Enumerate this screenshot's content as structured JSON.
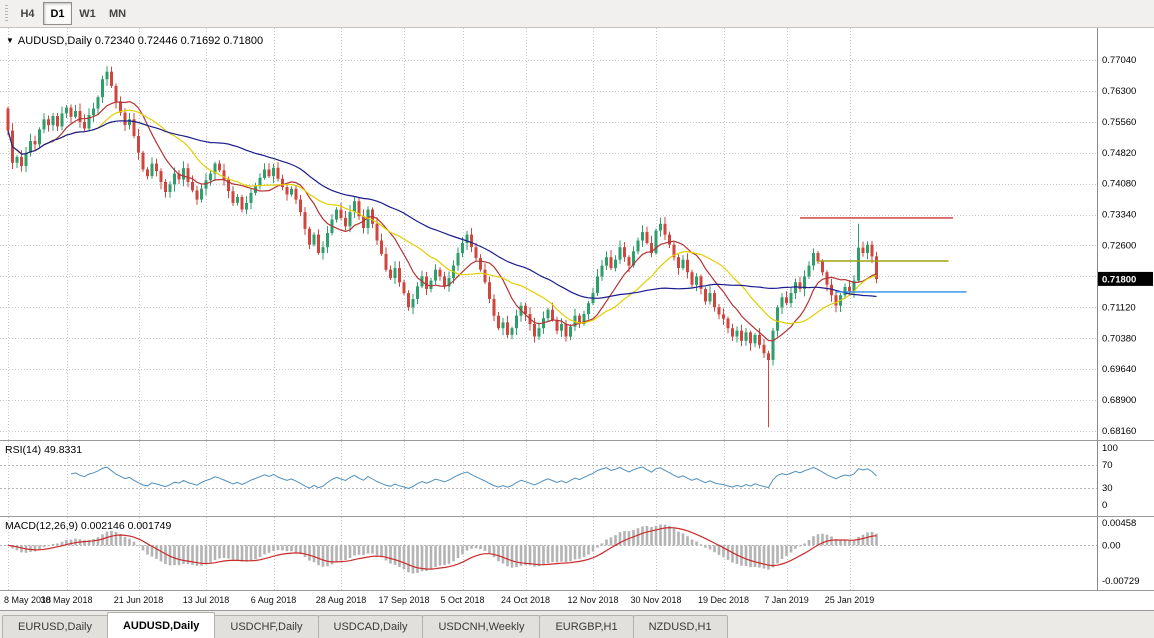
{
  "colors": {
    "grid": "#c8c8c8",
    "axis_text": "#000000",
    "pane_border": "#9a9a9a"
  },
  "toolbar": {
    "timeframes": [
      {
        "label": "H4",
        "active": false
      },
      {
        "label": "D1",
        "active": true
      },
      {
        "label": "W1",
        "active": false
      },
      {
        "label": "MN",
        "active": false
      }
    ]
  },
  "chart": {
    "title_arrow": "▼",
    "title": "AUDUSD,Daily 0.72340 0.72446 0.71692 0.71800"
  },
  "chart_data": {
    "type": "candlestick",
    "symbol": "AUDUSD",
    "timeframe": "Daily",
    "ohlc": {
      "open": "0.72340",
      "high": "0.72446",
      "low": "0.71692",
      "close": "0.71800"
    },
    "up_color": "#2e9e6b",
    "down_color": "#d0453e",
    "price_axis": {
      "max": 0.7704,
      "min": 0.6816,
      "labels": [
        "0.77040",
        "0.76300",
        "0.75560",
        "0.74820",
        "0.74080",
        "0.73340",
        "0.72600",
        "0.71860",
        "0.71120",
        "0.70380",
        "0.69640",
        "0.68900",
        "0.68160"
      ]
    },
    "date_axis": {
      "labels": [
        {
          "text": "8 May 2018",
          "index": 0
        },
        {
          "text": "30 May 2018",
          "index": 13
        },
        {
          "text": "21 Jun 2018",
          "index": 29
        },
        {
          "text": "13 Jul 2018",
          "index": 44
        },
        {
          "text": "6 Aug 2018",
          "index": 59
        },
        {
          "text": "28 Aug 2018",
          "index": 74
        },
        {
          "text": "17 Sep 2018",
          "index": 88
        },
        {
          "text": "5 Oct 2018",
          "index": 101
        },
        {
          "text": "24 Oct 2018",
          "index": 115
        },
        {
          "text": "12 Nov 2018",
          "index": 130
        },
        {
          "text": "30 Nov 2018",
          "index": 144
        },
        {
          "text": "19 Dec 2018",
          "index": 159
        },
        {
          "text": "7 Jan 2019",
          "index": 173
        },
        {
          "text": "25 Jan 2019",
          "index": 187
        }
      ]
    },
    "candles": {
      "first_open": 0.7588,
      "closes": [
        0.7535,
        0.7458,
        0.7472,
        0.745,
        0.7482,
        0.751,
        0.7502,
        0.7538,
        0.7562,
        0.7548,
        0.757,
        0.7545,
        0.7576,
        0.759,
        0.7568,
        0.7582,
        0.7556,
        0.754,
        0.7572,
        0.7588,
        0.7615,
        0.7658,
        0.7676,
        0.7642,
        0.7605,
        0.7578,
        0.7548,
        0.7562,
        0.7522,
        0.7482,
        0.7442,
        0.7426,
        0.7456,
        0.7438,
        0.7412,
        0.7388,
        0.7406,
        0.7432,
        0.7418,
        0.7445,
        0.7412,
        0.7392,
        0.737,
        0.7396,
        0.7416,
        0.7432,
        0.7456,
        0.744,
        0.7418,
        0.739,
        0.7362,
        0.7376,
        0.7346,
        0.7362,
        0.7386,
        0.7402,
        0.7422,
        0.7442,
        0.7426,
        0.7446,
        0.742,
        0.74,
        0.7382,
        0.7396,
        0.737,
        0.734,
        0.73,
        0.7262,
        0.7286,
        0.7242,
        0.7256,
        0.729,
        0.7322,
        0.7346,
        0.7326,
        0.7306,
        0.734,
        0.7366,
        0.733,
        0.7302,
        0.7346,
        0.7312,
        0.7272,
        0.724,
        0.7202,
        0.7182,
        0.7206,
        0.7172,
        0.7146,
        0.7112,
        0.7132,
        0.7162,
        0.7186,
        0.7156,
        0.7176,
        0.7202,
        0.7186,
        0.7162,
        0.7182,
        0.7212,
        0.7242,
        0.7266,
        0.7286,
        0.7256,
        0.723,
        0.7202,
        0.7172,
        0.7132,
        0.7092,
        0.7062,
        0.7076,
        0.7046,
        0.7062,
        0.7092,
        0.7116,
        0.7096,
        0.7072,
        0.7042,
        0.7062,
        0.7086,
        0.7106,
        0.7082,
        0.7056,
        0.7072,
        0.7042,
        0.7066,
        0.7092,
        0.7072,
        0.7096,
        0.7122,
        0.7146,
        0.7186,
        0.7212,
        0.7232,
        0.7206,
        0.7226,
        0.7256,
        0.7232,
        0.7212,
        0.7246,
        0.7272,
        0.7292,
        0.7266,
        0.7242,
        0.7296,
        0.7312,
        0.7286,
        0.7262,
        0.7232,
        0.7206,
        0.7226,
        0.7196,
        0.7166,
        0.7186,
        0.7156,
        0.7126,
        0.7146,
        0.7112,
        0.7095,
        0.7085,
        0.7062,
        0.7042,
        0.7056,
        0.7032,
        0.7052,
        0.7026,
        0.7046,
        0.7022,
        0.7002,
        0.6986,
        0.7056,
        0.7112,
        0.7136,
        0.7122,
        0.7146,
        0.7172,
        0.7156,
        0.7186,
        0.7212,
        0.7242,
        0.7222,
        0.7196,
        0.7166,
        0.7141,
        0.7116,
        0.7141,
        0.7161,
        0.7151,
        0.7176,
        0.7255,
        0.7242,
        0.7262,
        0.7234,
        0.718
      ],
      "wick_overrides": {
        "169": {
          "low": 0.6825
        },
        "189": {
          "high": 0.7312
        },
        "193": {
          "high": 0.72446,
          "low": 0.71692
        }
      }
    },
    "moving_averages": [
      {
        "name": "ma-fast-red",
        "period": 10,
        "color": "#b23434"
      },
      {
        "name": "ma-mid-yellow",
        "period": 20,
        "color": "#e3cf00"
      },
      {
        "name": "ma-slow-navy",
        "period": 45,
        "color": "#1b1b8e"
      }
    ],
    "levels": [
      {
        "name": "resistance-line-red",
        "price": 0.7326,
        "from_index": 176,
        "to_index": 210,
        "color": "#cc3333"
      },
      {
        "name": "resistance-line-olive",
        "price": 0.7223,
        "from_index": 180,
        "to_index": 209,
        "color": "#a0a410"
      },
      {
        "name": "support-line-blue",
        "price": 0.7149,
        "from_index": 184,
        "to_index": 213,
        "color": "#2f8fe8"
      }
    ],
    "current_price": {
      "value": 0.718,
      "label": "0.71800"
    },
    "indicators": [
      {
        "name": "RSI",
        "title": "RSI(14) 49.8331",
        "period": 14,
        "value": 49.8331,
        "axis_labels": [
          "100",
          "70",
          "30",
          "0"
        ],
        "level_lines": [
          70,
          30
        ],
        "line_color": "#4f8fbf"
      },
      {
        "name": "MACD",
        "title": "MACD(12,26,9) 0.002146 0.001749",
        "fast": 12,
        "slow": 26,
        "signal_period": 9,
        "macd_value": 0.002146,
        "signal_value": 0.001749,
        "axis_labels": [
          "0.00458",
          "0.00",
          "-0.00729"
        ],
        "scale_max": 0.00458,
        "scale_min": -0.00729,
        "histogram_color": "#b4b4b4",
        "signal_color": "#cc2b2b"
      }
    ]
  },
  "tabs": {
    "items": [
      "EURUSD,Daily",
      "AUDUSD,Daily",
      "USDCHF,Daily",
      "USDCAD,Daily",
      "USDCNH,Weekly",
      "EURGBP,H1",
      "NZDUSD,H1"
    ],
    "active_index": 1
  }
}
